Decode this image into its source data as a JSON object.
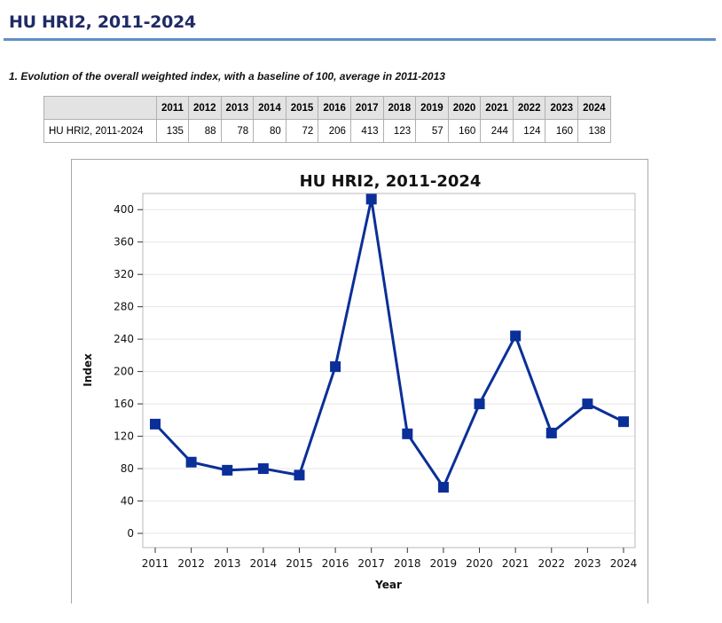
{
  "page": {
    "title": "HU HRI2, 2011-2024",
    "section_heading": "1. Evolution of the overall weighted index, with a baseline of 100, average in 2011-2013"
  },
  "table": {
    "columns": [
      "2011",
      "2012",
      "2013",
      "2014",
      "2015",
      "2016",
      "2017",
      "2018",
      "2019",
      "2020",
      "2021",
      "2022",
      "2023",
      "2024"
    ],
    "row_label": "HU HRI2, 2011-2024",
    "values": [
      "135",
      "88",
      "78",
      "80",
      "72",
      "206",
      "413",
      "123",
      "57",
      "160",
      "244",
      "124",
      "160",
      "138"
    ]
  },
  "colors": {
    "accent": "#1f2a66",
    "rule": "#5f8fc7",
    "series": "#0b2f98"
  },
  "chart_data": {
    "type": "line",
    "title": "HU HRI2, 2011-2024",
    "xlabel": "Year",
    "ylabel": "Index",
    "categories": [
      "2011",
      "2012",
      "2013",
      "2014",
      "2015",
      "2016",
      "2017",
      "2018",
      "2019",
      "2020",
      "2021",
      "2022",
      "2023",
      "2024"
    ],
    "series": [
      {
        "values": [
          135,
          88,
          78,
          80,
          72,
          206,
          413,
          123,
          57,
          160,
          244,
          124,
          160,
          138
        ],
        "marker": "square"
      }
    ],
    "ylim": [
      0,
      420
    ],
    "yticks": [
      0,
      40,
      80,
      120,
      160,
      200,
      240,
      280,
      320,
      360,
      400
    ],
    "grid": true
  }
}
